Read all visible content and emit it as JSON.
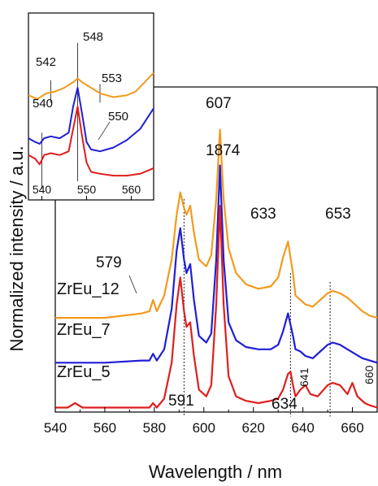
{
  "chart_data": [
    {
      "type": "line",
      "xlabel": "Wavelength / nm",
      "ylabel": "Normalized intensity / a.u.",
      "xlim": [
        540,
        670
      ],
      "ylim": [
        0,
        1.45
      ],
      "xticks": [
        540,
        560,
        580,
        600,
        620,
        640,
        660
      ],
      "grid": false,
      "colors": {
        "ZrEu_12": "#f39a1f",
        "ZrEu_7": "#1f1fd6",
        "ZrEu_5": "#e01e1e"
      },
      "series": [
        {
          "name": "ZrEu_12",
          "offset": 0.4,
          "x": [
            540,
            560,
            575,
            578,
            579.5,
            581,
            584,
            587,
            589,
            590.5,
            592,
            593,
            594.5,
            596,
            598,
            601,
            603,
            605,
            606.5,
            608,
            610,
            613,
            617,
            622,
            627,
            630,
            632,
            634,
            636,
            637,
            639,
            641,
            644,
            647,
            650,
            652,
            655,
            658,
            661,
            664,
            667,
            670
          ],
          "y": [
            0.02,
            0.02,
            0.04,
            0.05,
            0.1,
            0.05,
            0.12,
            0.28,
            0.48,
            0.58,
            0.51,
            0.48,
            0.52,
            0.4,
            0.28,
            0.25,
            0.3,
            0.55,
            0.86,
            0.55,
            0.33,
            0.22,
            0.17,
            0.15,
            0.16,
            0.2,
            0.29,
            0.36,
            0.22,
            0.12,
            0.1,
            0.08,
            0.07,
            0.1,
            0.13,
            0.14,
            0.13,
            0.11,
            0.08,
            0.05,
            0.03,
            0.02
          ]
        },
        {
          "name": "ZrEu_7",
          "offset": 0.2,
          "x": [
            540,
            560,
            575,
            578,
            579.5,
            581,
            584,
            587,
            589,
            590.5,
            592,
            593,
            594.5,
            596,
            598,
            601,
            603,
            605,
            606.5,
            608,
            610,
            613,
            617,
            622,
            627,
            630,
            632,
            634,
            636,
            637,
            639,
            641,
            644,
            647,
            650,
            652,
            655,
            658,
            661,
            664,
            667,
            670
          ],
          "y": [
            0.02,
            0.02,
            0.03,
            0.03,
            0.06,
            0.03,
            0.08,
            0.26,
            0.52,
            0.62,
            0.48,
            0.42,
            0.46,
            0.3,
            0.14,
            0.11,
            0.15,
            0.48,
            0.9,
            0.48,
            0.2,
            0.12,
            0.09,
            0.08,
            0.08,
            0.1,
            0.16,
            0.24,
            0.14,
            0.08,
            0.07,
            0.05,
            0.04,
            0.07,
            0.1,
            0.11,
            0.1,
            0.08,
            0.06,
            0.04,
            0.03,
            0.02
          ]
        },
        {
          "name": "ZrEu_5",
          "offset": 0.0,
          "x": [
            540,
            545,
            548,
            551,
            556,
            560,
            575,
            578,
            579.5,
            581,
            584,
            587,
            589,
            590.5,
            592,
            593,
            594.5,
            596,
            598,
            601,
            603,
            605,
            606.5,
            608,
            610,
            613,
            617,
            622,
            627,
            630,
            632,
            634,
            635,
            636,
            637,
            639,
            641,
            643,
            646,
            650,
            652,
            655,
            658,
            660,
            662,
            665,
            667,
            670
          ],
          "y": [
            0.02,
            0.02,
            0.04,
            0.02,
            0.02,
            0.02,
            0.02,
            0.02,
            0.04,
            0.02,
            0.06,
            0.22,
            0.48,
            0.6,
            0.45,
            0.38,
            0.4,
            0.25,
            0.1,
            0.07,
            0.12,
            0.48,
            0.92,
            0.48,
            0.16,
            0.07,
            0.05,
            0.04,
            0.05,
            0.06,
            0.1,
            0.17,
            0.18,
            0.12,
            0.07,
            0.1,
            0.12,
            0.08,
            0.07,
            0.12,
            0.13,
            0.12,
            0.08,
            0.13,
            0.07,
            0.04,
            0.03,
            0.02
          ]
        }
      ],
      "series_labels": [
        "ZrEu_12",
        "ZrEu_7",
        "ZrEu_5"
      ],
      "peak_labels": [
        "1874",
        "607",
        "579",
        "633",
        "653",
        "591",
        "634",
        "641",
        "660"
      ],
      "marker_lines": [
        592,
        635,
        651
      ]
    },
    {
      "type": "line",
      "role": "inset",
      "xlim": [
        537,
        565
      ],
      "ylim": [
        0,
        1
      ],
      "xticks": [
        540,
        550,
        560
      ],
      "series": [
        {
          "name": "ZrEu_12",
          "x": [
            537,
            539,
            541,
            543,
            545,
            547,
            548,
            549,
            551,
            553,
            556,
            559,
            561,
            563,
            565
          ],
          "y": [
            0.56,
            0.54,
            0.57,
            0.58,
            0.6,
            0.63,
            0.65,
            0.63,
            0.6,
            0.57,
            0.55,
            0.56,
            0.58,
            0.63,
            0.68
          ]
        },
        {
          "name": "ZrEu_7",
          "x": [
            537,
            538.5,
            539.5,
            540.5,
            542,
            544,
            546,
            547,
            548,
            549,
            550,
            551,
            553,
            556,
            559,
            562,
            565
          ],
          "y": [
            0.33,
            0.31,
            0.3,
            0.33,
            0.34,
            0.33,
            0.36,
            0.5,
            0.6,
            0.46,
            0.31,
            0.27,
            0.26,
            0.28,
            0.32,
            0.38,
            0.49
          ]
        },
        {
          "name": "ZrEu_5",
          "x": [
            537,
            538.5,
            539.5,
            540.5,
            542,
            544,
            546,
            547,
            548,
            549,
            550,
            551,
            553,
            556,
            559,
            562,
            565
          ],
          "y": [
            0.24,
            0.22,
            0.19,
            0.24,
            0.25,
            0.24,
            0.26,
            0.38,
            0.5,
            0.34,
            0.2,
            0.15,
            0.14,
            0.13,
            0.13,
            0.14,
            0.17
          ]
        }
      ],
      "peak_labels": [
        "548",
        "542",
        "553",
        "540",
        "550"
      ],
      "marker_lines": [
        540,
        542,
        548,
        553
      ]
    }
  ]
}
